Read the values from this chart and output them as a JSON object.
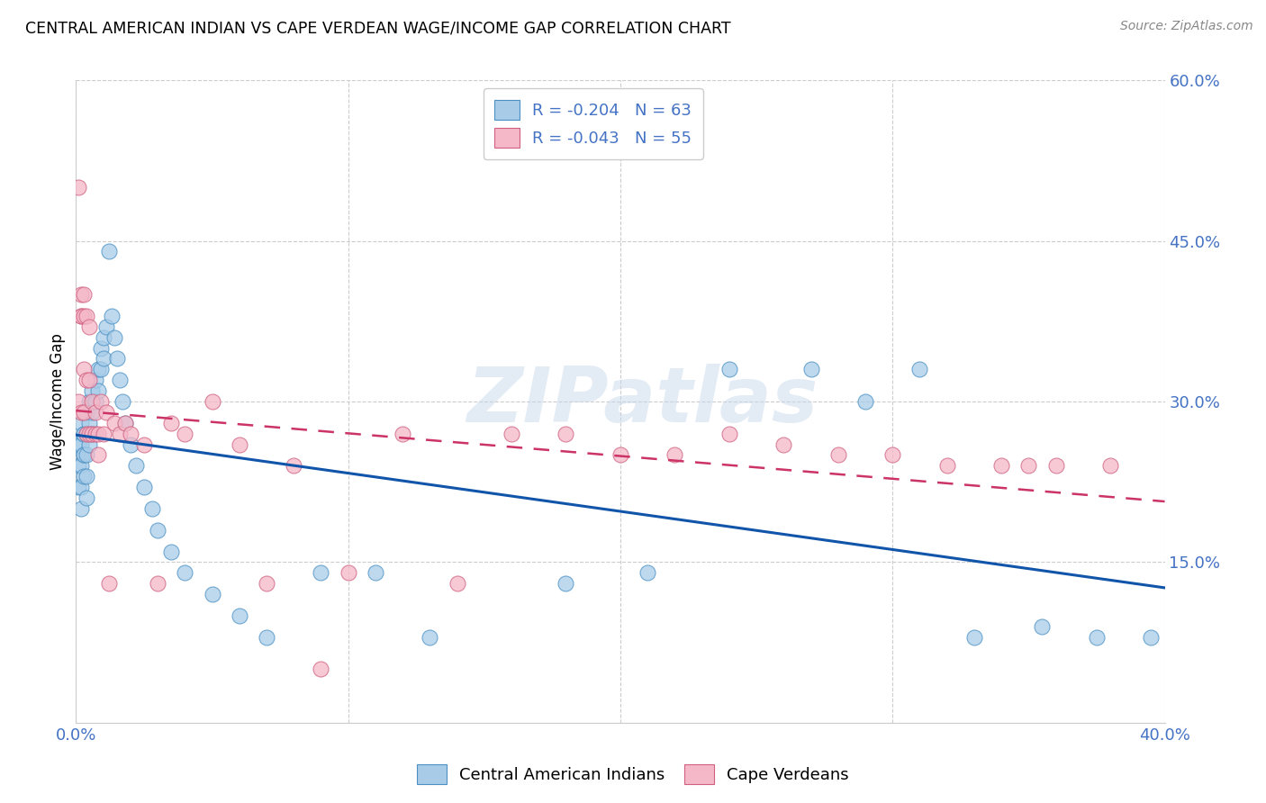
{
  "title": "CENTRAL AMERICAN INDIAN VS CAPE VERDEAN WAGE/INCOME GAP CORRELATION CHART",
  "source": "Source: ZipAtlas.com",
  "ylabel": "Wage/Income Gap",
  "blue_R": -0.204,
  "blue_N": 63,
  "pink_R": -0.043,
  "pink_N": 55,
  "blue_color": "#a8cce8",
  "pink_color": "#f4b8c8",
  "blue_edge_color": "#4a90c4",
  "pink_edge_color": "#d06080",
  "blue_line_color": "#1155aa",
  "pink_line_color": "#cc3366",
  "tick_color": "#4472c4",
  "watermark_text": "ZIPatlas",
  "legend_label_blue": "Central American Indians",
  "legend_label_pink": "Cape Verdeans",
  "xlim": [
    0.0,
    0.4
  ],
  "ylim": [
    0.0,
    0.6
  ],
  "blue_x": [
    0.001,
    0.001,
    0.001,
    0.002,
    0.002,
    0.002,
    0.002,
    0.002,
    0.003,
    0.003,
    0.003,
    0.003,
    0.003,
    0.004,
    0.004,
    0.004,
    0.004,
    0.004,
    0.005,
    0.005,
    0.005,
    0.006,
    0.006,
    0.006,
    0.007,
    0.007,
    0.008,
    0.008,
    0.009,
    0.009,
    0.01,
    0.01,
    0.011,
    0.012,
    0.013,
    0.014,
    0.015,
    0.016,
    0.017,
    0.018,
    0.02,
    0.022,
    0.025,
    0.028,
    0.03,
    0.035,
    0.04,
    0.05,
    0.06,
    0.07,
    0.09,
    0.11,
    0.13,
    0.18,
    0.21,
    0.24,
    0.27,
    0.29,
    0.31,
    0.33,
    0.355,
    0.375,
    0.395
  ],
  "blue_y": [
    0.26,
    0.24,
    0.22,
    0.28,
    0.26,
    0.24,
    0.22,
    0.2,
    0.27,
    0.25,
    0.23,
    0.27,
    0.25,
    0.29,
    0.27,
    0.25,
    0.23,
    0.21,
    0.3,
    0.28,
    0.26,
    0.31,
    0.29,
    0.27,
    0.32,
    0.3,
    0.33,
    0.31,
    0.35,
    0.33,
    0.36,
    0.34,
    0.37,
    0.44,
    0.38,
    0.36,
    0.34,
    0.32,
    0.3,
    0.28,
    0.26,
    0.24,
    0.22,
    0.2,
    0.18,
    0.16,
    0.14,
    0.12,
    0.1,
    0.08,
    0.14,
    0.14,
    0.08,
    0.13,
    0.14,
    0.33,
    0.33,
    0.3,
    0.33,
    0.08,
    0.09,
    0.08,
    0.08
  ],
  "pink_x": [
    0.001,
    0.001,
    0.002,
    0.002,
    0.002,
    0.002,
    0.003,
    0.003,
    0.003,
    0.003,
    0.004,
    0.004,
    0.004,
    0.005,
    0.005,
    0.005,
    0.006,
    0.006,
    0.007,
    0.007,
    0.008,
    0.008,
    0.009,
    0.01,
    0.011,
    0.012,
    0.014,
    0.016,
    0.018,
    0.02,
    0.025,
    0.03,
    0.035,
    0.04,
    0.05,
    0.06,
    0.07,
    0.08,
    0.09,
    0.1,
    0.12,
    0.14,
    0.16,
    0.18,
    0.2,
    0.22,
    0.24,
    0.26,
    0.28,
    0.3,
    0.32,
    0.34,
    0.35,
    0.36,
    0.38
  ],
  "pink_y": [
    0.5,
    0.3,
    0.4,
    0.38,
    0.38,
    0.29,
    0.4,
    0.38,
    0.33,
    0.29,
    0.38,
    0.32,
    0.27,
    0.37,
    0.32,
    0.27,
    0.3,
    0.27,
    0.29,
    0.27,
    0.27,
    0.25,
    0.3,
    0.27,
    0.29,
    0.13,
    0.28,
    0.27,
    0.28,
    0.27,
    0.26,
    0.13,
    0.28,
    0.27,
    0.3,
    0.26,
    0.13,
    0.24,
    0.05,
    0.14,
    0.27,
    0.13,
    0.27,
    0.27,
    0.25,
    0.25,
    0.27,
    0.26,
    0.25,
    0.25,
    0.24,
    0.24,
    0.24,
    0.24,
    0.24
  ]
}
